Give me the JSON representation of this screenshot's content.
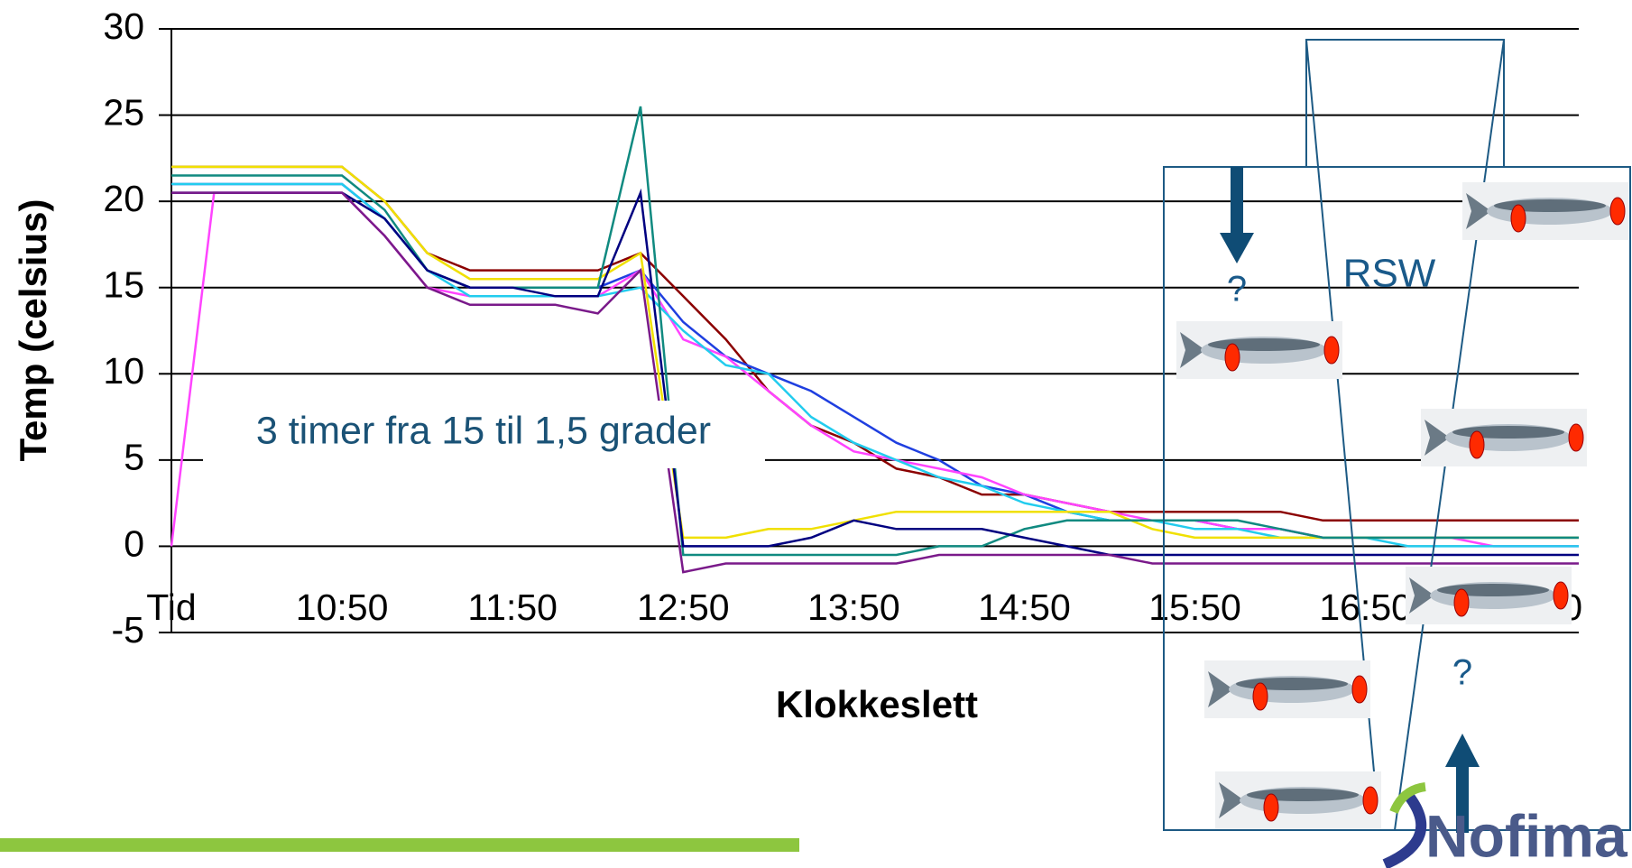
{
  "chart_data": {
    "type": "line",
    "y_label": "Temp (celsius)",
    "x_label": "Klokkeslett",
    "annotation": "3 timer fra 15 til 1,5 grader",
    "x": [
      "09:50",
      "10:05",
      "10:20",
      "10:35",
      "10:50",
      "11:05",
      "11:20",
      "11:35",
      "11:50",
      "12:05",
      "12:20",
      "12:35",
      "12:50",
      "13:05",
      "13:20",
      "13:35",
      "13:50",
      "14:05",
      "14:20",
      "14:35",
      "14:50",
      "15:05",
      "15:20",
      "15:35",
      "15:50",
      "16:05",
      "16:20",
      "16:35",
      "16:50",
      "17:05",
      "17:20",
      "17:35",
      "17:50",
      "18:05"
    ],
    "xlim": [
      "09:50",
      "18:05"
    ],
    "xticks": [
      {
        "value": "09:50",
        "label": "Tid"
      },
      "10:50",
      "11:50",
      "12:50",
      "13:50",
      "14:50",
      "15:50",
      "16:50",
      "17:50"
    ],
    "ylim": [
      -5,
      30
    ],
    "yticks": [
      -5,
      0,
      5,
      10,
      15,
      20,
      25,
      30
    ],
    "grid": true,
    "series": [
      {
        "color": "#8b0000",
        "values": [
          22,
          22,
          22,
          22,
          22,
          20,
          17,
          16,
          16,
          16,
          16,
          17,
          14.5,
          12,
          9,
          7,
          6,
          4.5,
          4,
          3,
          3,
          2.5,
          2,
          2,
          2,
          2,
          2,
          1.5,
          1.5,
          1.5,
          1.5,
          1.5,
          1.5,
          1.5
        ]
      },
      {
        "color": "#1f3fe0",
        "values": [
          21,
          21,
          21,
          21,
          21,
          19,
          16,
          15,
          15,
          15,
          15,
          16,
          13,
          11,
          10,
          9,
          7.5,
          6,
          5,
          3.5,
          3,
          2,
          1.5,
          1.5,
          1.5,
          1,
          1,
          0.5,
          0.5,
          0.5,
          0.5,
          0.5,
          0.5,
          0.5
        ]
      },
      {
        "color": "#ff44ff",
        "values": [
          0,
          20.5,
          20.5,
          20.5,
          20.5,
          18,
          15,
          14.5,
          14.5,
          14.5,
          14.5,
          16,
          12,
          11,
          9,
          7,
          5.5,
          5,
          4.5,
          4,
          3,
          2.5,
          2,
          1.5,
          1.5,
          1,
          1,
          0.5,
          0.5,
          0.5,
          0.5,
          0,
          0,
          0
        ]
      },
      {
        "color": "#22ccee",
        "values": [
          21,
          21,
          21,
          21,
          21,
          19,
          16,
          14.5,
          14.5,
          14.5,
          14.5,
          15,
          12.5,
          10.5,
          10,
          7.5,
          6,
          5,
          4,
          3.5,
          2.5,
          2,
          1.5,
          1.5,
          1,
          1,
          0.5,
          0.5,
          0.5,
          0,
          0,
          0,
          0,
          0
        ]
      },
      {
        "color": "#f0e000",
        "values": [
          22,
          22,
          22,
          22,
          22,
          20,
          17,
          15.5,
          15.5,
          15.5,
          15.5,
          17,
          0.5,
          0.5,
          1,
          1,
          1.5,
          2,
          2,
          2,
          2,
          2,
          2,
          1,
          0.5,
          0.5,
          0.5,
          0.5,
          0.5,
          0.5,
          0.5,
          0.5,
          0.5,
          0.5
        ]
      },
      {
        "color": "#108a80",
        "values": [
          21.5,
          21.5,
          21.5,
          21.5,
          21.5,
          19.5,
          16,
          15,
          15,
          15,
          15,
          25.5,
          -0.5,
          -0.5,
          -0.5,
          -0.5,
          -0.5,
          -0.5,
          0,
          0,
          1,
          1.5,
          1.5,
          1.5,
          1.5,
          1.5,
          1,
          0.5,
          0.5,
          0.5,
          0.5,
          0.5,
          0.5,
          0.5
        ]
      },
      {
        "color": "#000080",
        "values": [
          20.5,
          20.5,
          20.5,
          20.5,
          20.5,
          19,
          16,
          15,
          15,
          14.5,
          14.5,
          20.5,
          0,
          0,
          0,
          0.5,
          1.5,
          1,
          1,
          1,
          0.5,
          0,
          -0.5,
          -0.5,
          -0.5,
          -0.5,
          -0.5,
          -0.5,
          -0.5,
          -0.5,
          -0.5,
          -0.5,
          -0.5,
          -0.5
        ]
      },
      {
        "color": "#7a1a8a",
        "values": [
          20.5,
          20.5,
          20.5,
          20.5,
          20.5,
          18,
          15,
          14,
          14,
          14,
          13.5,
          16,
          -1.5,
          -1,
          -1,
          -1,
          -1,
          -1,
          -0.5,
          -0.5,
          -0.5,
          -0.5,
          -0.5,
          -1,
          -1,
          -1,
          -1,
          -1,
          -1,
          -1,
          -1,
          -1,
          -1,
          -1
        ]
      }
    ]
  },
  "diagram": {
    "top_label": "?",
    "tank_label": "RSW",
    "bottom_label": "?"
  },
  "logo": "Nofima"
}
